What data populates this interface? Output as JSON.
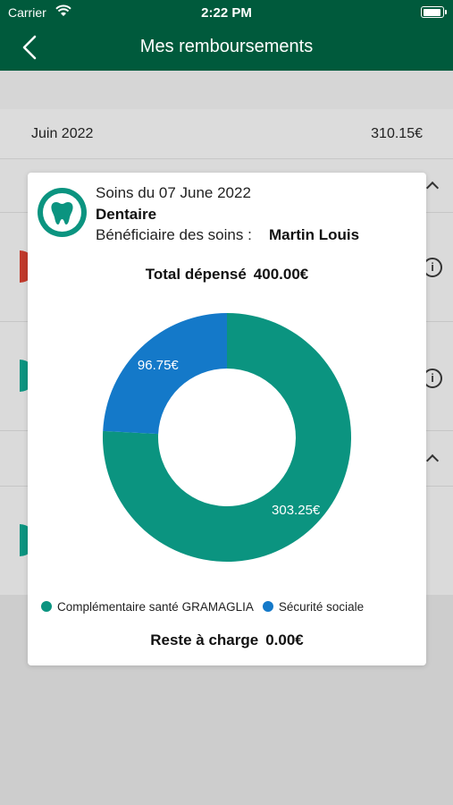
{
  "status_bar": {
    "carrier": "Carrier",
    "time": "2:22 PM"
  },
  "nav": {
    "title": "Mes remboursements",
    "back_icon": "chevron-left-icon"
  },
  "background": {
    "month_label": "Juin 2022",
    "month_amount": "310.15€"
  },
  "modal": {
    "soins_date": "Soins du 07 June 2022",
    "care_type": "Dentaire",
    "beneficiary_label": "Bénéficiaire des soins :",
    "beneficiary_name": "Martin Louis",
    "total_label": "Total dépensé",
    "total_value": "400.00€",
    "reste_label": "Reste à charge",
    "reste_value": "0.00€",
    "logo_icon": "tooth-icon"
  },
  "chart_data": {
    "type": "pie",
    "style": "donut",
    "slices": [
      {
        "name": "Complémentaire santé GRAMAGLIA",
        "value": 303.25,
        "label": "303.25€",
        "color": "#0b9480"
      },
      {
        "name": "Sécurité sociale",
        "value": 96.75,
        "label": "96.75€",
        "color": "#1479c9"
      }
    ],
    "legend_position": "bottom"
  },
  "colors": {
    "header": "#005a3c",
    "accent": "#0b9480",
    "secondary": "#1479c9"
  }
}
